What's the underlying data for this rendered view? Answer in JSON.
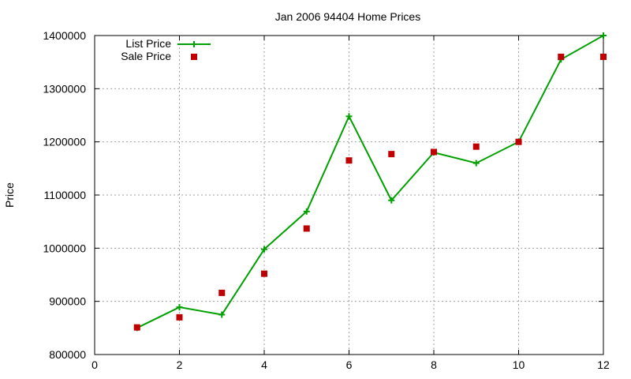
{
  "chart_data": {
    "type": "line",
    "title": "Jan 2006 94404 Home Prices",
    "xlabel": "",
    "ylabel": "Price",
    "xlim": [
      0,
      12
    ],
    "ylim": [
      800000,
      1400000
    ],
    "xticks": [
      "0",
      "2",
      "4",
      "6",
      "8",
      "10",
      "12"
    ],
    "yticks": [
      "800000",
      "900000",
      "1000000",
      "1100000",
      "1200000",
      "1300000",
      "1400000"
    ],
    "grid": true,
    "legend_position": "top-left",
    "series": [
      {
        "name": "List Price",
        "style": "line-with-plus",
        "color": "#00a000",
        "x": [
          1,
          2,
          3,
          4,
          5,
          6,
          7,
          8,
          9,
          10,
          11,
          12
        ],
        "y": [
          850000,
          889000,
          875000,
          998000,
          1069000,
          1248000,
          1090000,
          1180000,
          1160000,
          1200000,
          1355000,
          1400000
        ]
      },
      {
        "name": "Sale Price",
        "style": "square-markers",
        "color": "#c00000",
        "x": [
          1,
          2,
          3,
          4,
          5,
          6,
          7,
          8,
          9,
          10,
          11,
          12
        ],
        "y": [
          851000,
          870000,
          916000,
          952000,
          1037000,
          1165000,
          1177000,
          1181000,
          1191000,
          1200000,
          1360000,
          1360000
        ]
      }
    ]
  }
}
